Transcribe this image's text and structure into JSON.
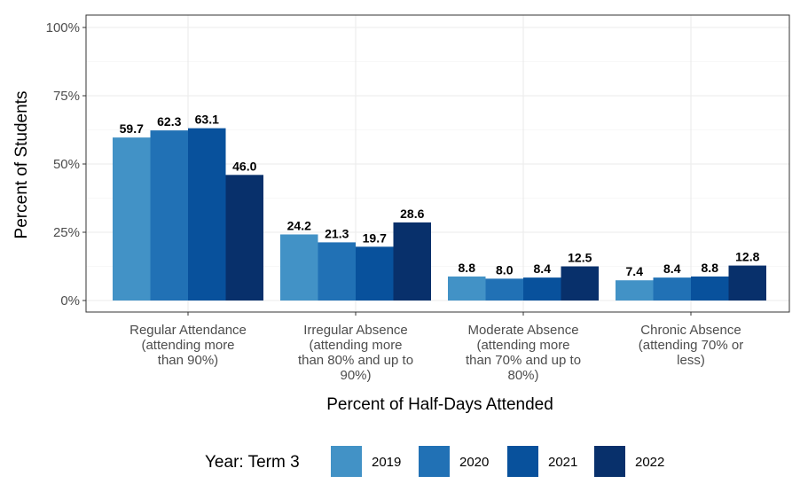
{
  "chart_data": {
    "type": "bar",
    "categories": [
      [
        "Regular Attendance",
        "(attending more",
        "than 90%)"
      ],
      [
        "Irregular Absence",
        "(attending more",
        "than 80% and up to",
        "90%)"
      ],
      [
        "Moderate Absence",
        "(attending more",
        "than 70% and up to",
        "80%)"
      ],
      [
        "Chronic Absence",
        "(attending 70% or",
        "less)"
      ]
    ],
    "series": [
      {
        "name": "2019",
        "color": "#4292c6",
        "values": [
          59.7,
          24.2,
          8.8,
          7.4
        ],
        "labels": [
          "59.7",
          "24.2",
          "8.8",
          "7.4"
        ]
      },
      {
        "name": "2020",
        "color": "#2171b5",
        "values": [
          62.3,
          21.3,
          8.0,
          8.4
        ],
        "labels": [
          "62.3",
          "21.3",
          "8.0",
          "8.4"
        ]
      },
      {
        "name": "2021",
        "color": "#08519c",
        "values": [
          63.1,
          19.7,
          8.4,
          8.8
        ],
        "labels": [
          "63.1",
          "19.7",
          "8.4",
          "8.8"
        ]
      },
      {
        "name": "2022",
        "color": "#08306b",
        "values": [
          46.0,
          28.6,
          12.5,
          12.8
        ],
        "labels": [
          "46.0",
          "28.6",
          "12.5",
          "12.8"
        ]
      }
    ],
    "xlabel": "Percent of Half-Days Attended",
    "ylabel": "Percent of Students",
    "ylim": [
      0,
      100
    ],
    "yticks": [
      0,
      25,
      50,
      75,
      100
    ],
    "ytick_labels": [
      "0%",
      "25%",
      "50%",
      "75%",
      "100%"
    ],
    "legend_title": "Year: Term 3",
    "legend_position": "bottom",
    "grid": true
  }
}
